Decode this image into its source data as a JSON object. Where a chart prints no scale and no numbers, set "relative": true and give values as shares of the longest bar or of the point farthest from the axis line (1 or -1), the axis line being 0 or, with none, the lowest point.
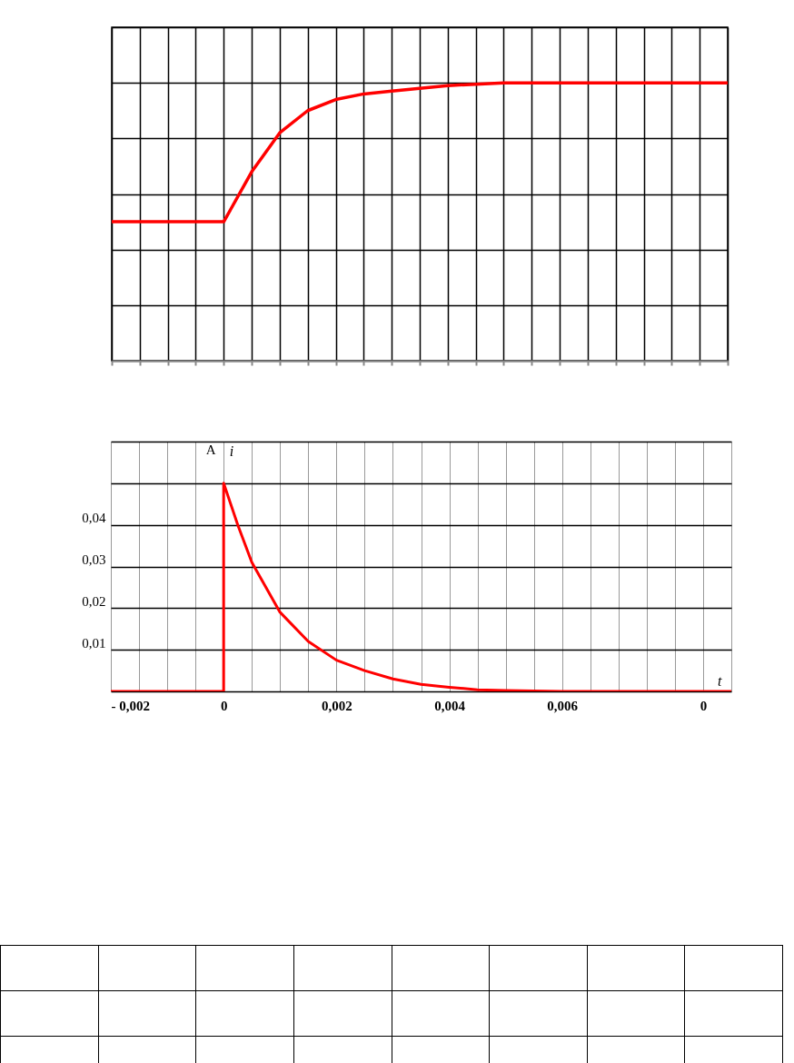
{
  "chart_data": [
    {
      "type": "line",
      "relative": true,
      "grid": true,
      "categories": [
        null,
        null,
        null,
        null,
        null,
        null,
        null,
        null,
        null,
        null,
        null,
        null,
        null,
        null,
        null,
        null,
        null,
        null,
        null,
        null,
        null,
        null,
        null
      ],
      "series": [
        {
          "color": "#ff0000",
          "values": [
            0.5,
            0.5,
            0.5,
            0.5,
            0.5,
            0.68,
            0.82,
            0.9,
            0.94,
            0.96,
            0.97,
            0.98,
            0.99,
            0.995,
            1,
            1,
            1,
            1,
            1,
            1,
            1,
            1,
            1
          ]
        }
      ]
    },
    {
      "type": "line",
      "grid": true,
      "xlabel": "t",
      "ylabel": "i",
      "annotations": [
        "A"
      ],
      "xlim": [
        -0.002,
        0.009
      ],
      "ylim": [
        0,
        0.06
      ],
      "xticks": [
        {
          "value": -0.002,
          "label": "- 0,002"
        },
        {
          "value": -0.0015,
          "label": null
        },
        {
          "value": -0.001,
          "label": null
        },
        {
          "value": -0.0005,
          "label": null
        },
        {
          "value": 0,
          "label": "0"
        },
        {
          "value": 0.0005,
          "label": null
        },
        {
          "value": 0.001,
          "label": null
        },
        {
          "value": 0.0015,
          "label": null
        },
        {
          "value": 0.002,
          "label": "0,002"
        },
        {
          "value": 0.0025,
          "label": null
        },
        {
          "value": 0.003,
          "label": null
        },
        {
          "value": 0.0035,
          "label": null
        },
        {
          "value": 0.004,
          "label": "0,004"
        },
        {
          "value": 0.0045,
          "label": null
        },
        {
          "value": 0.005,
          "label": null
        },
        {
          "value": 0.0055,
          "label": null
        },
        {
          "value": 0.006,
          "label": "0,006"
        },
        {
          "value": 0.0065,
          "label": null
        },
        {
          "value": 0.007,
          "label": null
        },
        {
          "value": 0.0075,
          "label": null
        },
        {
          "value": 0.008,
          "label": null
        },
        {
          "value": 0.0085,
          "label": "0"
        },
        {
          "value": 0.009,
          "label": null
        }
      ],
      "yticks": [
        {
          "value": 0,
          "label": null
        },
        {
          "value": 0.01,
          "label": "0,01"
        },
        {
          "value": 0.02,
          "label": "0,02"
        },
        {
          "value": 0.03,
          "label": "0,03"
        },
        {
          "value": 0.04,
          "label": "0,04"
        },
        {
          "value": 0.05,
          "label": null
        },
        {
          "value": 0.06,
          "label": null
        }
      ],
      "series": [
        {
          "color": "#ff0000",
          "x": [
            -0.002,
            0,
            0,
            0.00025,
            0.0005,
            0.00075,
            0.001,
            0.0015,
            0.002,
            0.0025,
            0.003,
            0.0035,
            0.004,
            0.0045,
            0.005,
            0.006,
            0.009
          ],
          "values": [
            0,
            0,
            0.05,
            0.04,
            0.031,
            0.025,
            0.019,
            0.012,
            0.0075,
            0.005,
            0.003,
            0.0017,
            0.001,
            0.0004,
            0.0002,
            0,
            0
          ]
        }
      ]
    }
  ]
}
